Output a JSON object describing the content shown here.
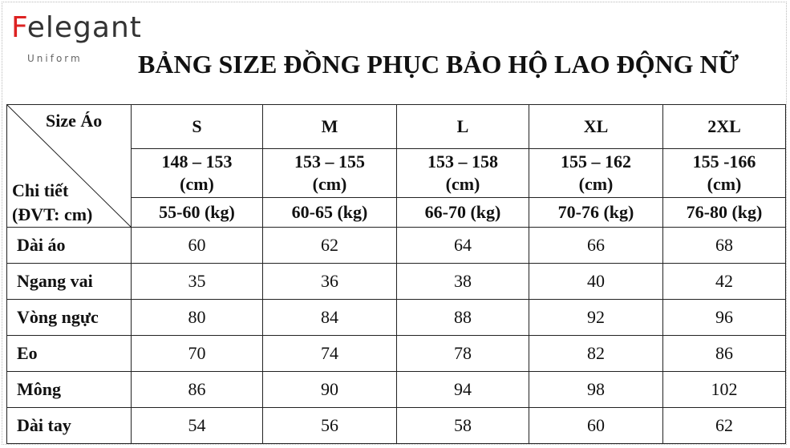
{
  "header": {
    "logo": "Felegant",
    "logo_sub": "Uniform",
    "title": "BẢNG SIZE ĐỒNG PHỤC BẢO HỘ LAO ĐỘNG NỮ"
  },
  "table": {
    "corner_top": "Size Áo",
    "corner_bottom": [
      "Chi tiết",
      "(ĐVT: cm)"
    ],
    "sizes": [
      "S",
      "M",
      "L",
      "XL",
      "2XL"
    ],
    "heights": [
      [
        "148 – 153",
        "(cm)"
      ],
      [
        "153 – 155",
        "(cm)"
      ],
      [
        "153 – 158",
        "(cm)"
      ],
      [
        "155 – 162",
        "(cm)"
      ],
      [
        "155 -166",
        "(cm)"
      ]
    ],
    "weights": [
      "55-60 (kg)",
      "60-65 (kg)",
      "66-70 (kg)",
      "70-76 (kg)",
      "76-80 (kg)"
    ],
    "rows": [
      [
        "Dài áo",
        "60",
        "62",
        "64",
        "66",
        "68"
      ],
      [
        "Ngang vai",
        "35",
        "36",
        "38",
        "40",
        "42"
      ],
      [
        "Vòng ngực",
        "80",
        "84",
        "88",
        "92",
        "96"
      ],
      [
        "Eo",
        "70",
        "74",
        "78",
        "82",
        "86"
      ],
      [
        "Mông",
        "86",
        "90",
        "94",
        "98",
        "102"
      ],
      [
        "Dài tay",
        "54",
        "56",
        "58",
        "60",
        "62"
      ]
    ]
  }
}
